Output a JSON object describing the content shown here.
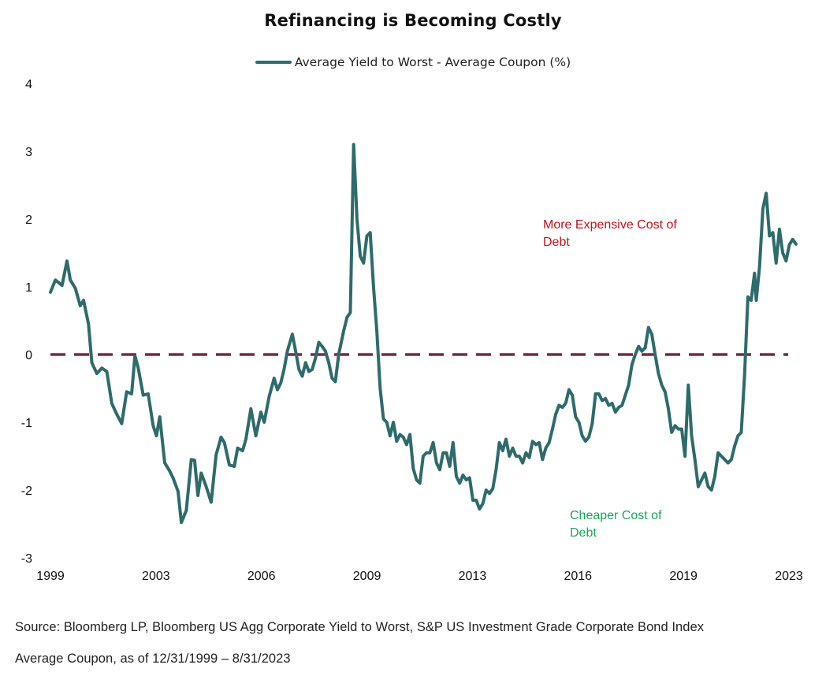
{
  "chart_data": {
    "type": "line",
    "title": "Refinancing is Becoming Costly",
    "xlabel": "",
    "ylabel": "",
    "ylim": [
      -3,
      4
    ],
    "yticks": [
      "4",
      "3",
      "2",
      "1",
      "0",
      "-1",
      "-2",
      "-3"
    ],
    "xticks": [
      "1999",
      "2003",
      "2006",
      "2009",
      "2013",
      "2016",
      "2019",
      "2023"
    ],
    "grid": false,
    "legend_position": "top-center",
    "reference_line": {
      "y": 0,
      "style": "dashed",
      "color": "#7a2848"
    },
    "annotations": [
      {
        "lines": [
          "More Expensive Cost of",
          "Debt"
        ],
        "color": "#c0121f"
      },
      {
        "lines": [
          "Cheaper Cost of",
          "Debt"
        ],
        "color": "#19a85a"
      }
    ],
    "series": [
      {
        "name": "Average Yield to Worst - Average Coupon (%)",
        "color": "#2e6b6b",
        "points": [
          [
            1999.95,
            0.92
          ],
          [
            2000.1,
            1.1
          ],
          [
            2000.3,
            1.02
          ],
          [
            2000.45,
            1.38
          ],
          [
            2000.55,
            1.1
          ],
          [
            2000.7,
            0.98
          ],
          [
            2000.85,
            0.72
          ],
          [
            2000.95,
            0.8
          ],
          [
            2001.1,
            0.45
          ],
          [
            2001.2,
            -0.12
          ],
          [
            2001.35,
            -0.28
          ],
          [
            2001.5,
            -0.2
          ],
          [
            2001.65,
            -0.25
          ],
          [
            2001.8,
            -0.72
          ],
          [
            2001.95,
            -0.88
          ],
          [
            2002.1,
            -1.02
          ],
          [
            2002.25,
            -0.55
          ],
          [
            2002.4,
            -0.58
          ],
          [
            2002.5,
            -0.02
          ],
          [
            2002.6,
            -0.2
          ],
          [
            2002.75,
            -0.6
          ],
          [
            2002.9,
            -0.58
          ],
          [
            2003.05,
            -1.05
          ],
          [
            2003.15,
            -1.2
          ],
          [
            2003.25,
            -0.92
          ],
          [
            2003.4,
            -1.6
          ],
          [
            2003.55,
            -1.72
          ],
          [
            2003.65,
            -1.82
          ],
          [
            2003.8,
            -2.02
          ],
          [
            2003.9,
            -2.48
          ],
          [
            2004.05,
            -2.3
          ],
          [
            2004.2,
            -1.55
          ],
          [
            2004.3,
            -1.56
          ],
          [
            2004.4,
            -2.08
          ],
          [
            2004.5,
            -1.75
          ],
          [
            2004.65,
            -1.95
          ],
          [
            2004.8,
            -2.18
          ],
          [
            2004.95,
            -1.48
          ],
          [
            2005.1,
            -1.22
          ],
          [
            2005.2,
            -1.3
          ],
          [
            2005.35,
            -1.63
          ],
          [
            2005.5,
            -1.65
          ],
          [
            2005.6,
            -1.38
          ],
          [
            2005.75,
            -1.42
          ],
          [
            2005.85,
            -1.25
          ],
          [
            2006.0,
            -0.8
          ],
          [
            2006.15,
            -1.2
          ],
          [
            2006.3,
            -0.85
          ],
          [
            2006.4,
            -1.0
          ],
          [
            2006.55,
            -0.62
          ],
          [
            2006.7,
            -0.35
          ],
          [
            2006.8,
            -0.52
          ],
          [
            2006.9,
            -0.42
          ],
          [
            2007.0,
            -0.22
          ],
          [
            2007.1,
            0.05
          ],
          [
            2007.25,
            0.3
          ],
          [
            2007.35,
            0.05
          ],
          [
            2007.45,
            -0.22
          ],
          [
            2007.55,
            -0.32
          ],
          [
            2007.65,
            -0.12
          ],
          [
            2007.75,
            -0.25
          ],
          [
            2007.85,
            -0.22
          ],
          [
            2007.95,
            -0.05
          ],
          [
            2008.05,
            0.18
          ],
          [
            2008.15,
            0.12
          ],
          [
            2008.25,
            0.05
          ],
          [
            2008.35,
            -0.12
          ],
          [
            2008.45,
            -0.35
          ],
          [
            2008.55,
            -0.4
          ],
          [
            2008.65,
            0.0
          ],
          [
            2008.8,
            0.35
          ],
          [
            2008.9,
            0.55
          ],
          [
            2009.0,
            0.62
          ],
          [
            2009.1,
            3.1
          ],
          [
            2009.2,
            2.0
          ],
          [
            2009.3,
            1.45
          ],
          [
            2009.4,
            1.35
          ],
          [
            2009.5,
            1.75
          ],
          [
            2009.6,
            1.8
          ],
          [
            2009.7,
            1.0
          ],
          [
            2009.8,
            0.35
          ],
          [
            2009.9,
            -0.5
          ],
          [
            2010.0,
            -0.95
          ],
          [
            2010.1,
            -1.0
          ],
          [
            2010.2,
            -1.2
          ],
          [
            2010.3,
            -1.0
          ],
          [
            2010.4,
            -1.28
          ],
          [
            2010.5,
            -1.18
          ],
          [
            2010.6,
            -1.22
          ],
          [
            2010.7,
            -1.33
          ],
          [
            2010.8,
            -1.18
          ],
          [
            2010.9,
            -1.68
          ],
          [
            2011.0,
            -1.85
          ],
          [
            2011.1,
            -1.9
          ],
          [
            2011.2,
            -1.5
          ],
          [
            2011.3,
            -1.45
          ],
          [
            2011.4,
            -1.45
          ],
          [
            2011.5,
            -1.3
          ],
          [
            2011.6,
            -1.6
          ],
          [
            2011.7,
            -1.7
          ],
          [
            2011.8,
            -1.45
          ],
          [
            2011.9,
            -1.45
          ],
          [
            2012.0,
            -1.65
          ],
          [
            2012.1,
            -1.3
          ],
          [
            2012.2,
            -1.8
          ],
          [
            2012.3,
            -1.9
          ],
          [
            2012.4,
            -1.78
          ],
          [
            2012.5,
            -1.85
          ],
          [
            2012.6,
            -1.82
          ],
          [
            2012.7,
            -2.15
          ],
          [
            2012.8,
            -2.15
          ],
          [
            2012.9,
            -2.28
          ],
          [
            2013.0,
            -2.2
          ],
          [
            2013.1,
            -2.0
          ],
          [
            2013.2,
            -2.05
          ],
          [
            2013.3,
            -1.98
          ],
          [
            2013.4,
            -1.7
          ],
          [
            2013.5,
            -1.3
          ],
          [
            2013.6,
            -1.42
          ],
          [
            2013.7,
            -1.25
          ],
          [
            2013.8,
            -1.5
          ],
          [
            2013.9,
            -1.38
          ],
          [
            2014.0,
            -1.5
          ],
          [
            2014.1,
            -1.5
          ],
          [
            2014.2,
            -1.6
          ],
          [
            2014.3,
            -1.45
          ],
          [
            2014.4,
            -1.52
          ],
          [
            2014.5,
            -1.28
          ],
          [
            2014.6,
            -1.33
          ],
          [
            2014.7,
            -1.3
          ],
          [
            2014.8,
            -1.55
          ],
          [
            2014.9,
            -1.38
          ],
          [
            2015.0,
            -1.3
          ],
          [
            2015.1,
            -1.1
          ],
          [
            2015.2,
            -0.88
          ],
          [
            2015.3,
            -0.75
          ],
          [
            2015.4,
            -0.78
          ],
          [
            2015.5,
            -0.72
          ],
          [
            2015.6,
            -0.52
          ],
          [
            2015.7,
            -0.6
          ],
          [
            2015.8,
            -0.92
          ],
          [
            2015.9,
            -1.0
          ],
          [
            2016.0,
            -1.2
          ],
          [
            2016.1,
            -1.28
          ],
          [
            2016.2,
            -1.22
          ],
          [
            2016.3,
            -1.02
          ],
          [
            2016.4,
            -0.58
          ],
          [
            2016.5,
            -0.58
          ],
          [
            2016.6,
            -0.68
          ],
          [
            2016.7,
            -0.65
          ],
          [
            2016.8,
            -0.75
          ],
          [
            2016.9,
            -0.72
          ],
          [
            2017.0,
            -0.85
          ],
          [
            2017.1,
            -0.78
          ],
          [
            2017.2,
            -0.75
          ],
          [
            2017.3,
            -0.6
          ],
          [
            2017.4,
            -0.45
          ],
          [
            2017.5,
            -0.15
          ],
          [
            2017.6,
            0.0
          ],
          [
            2017.7,
            0.12
          ],
          [
            2017.8,
            0.05
          ],
          [
            2017.9,
            0.1
          ],
          [
            2018.0,
            0.4
          ],
          [
            2018.1,
            0.3
          ],
          [
            2018.2,
            0.0
          ],
          [
            2018.3,
            -0.28
          ],
          [
            2018.4,
            -0.45
          ],
          [
            2018.5,
            -0.55
          ],
          [
            2018.6,
            -0.8
          ],
          [
            2018.7,
            -1.15
          ],
          [
            2018.8,
            -1.05
          ],
          [
            2018.9,
            -1.1
          ],
          [
            2019.0,
            -1.1
          ],
          [
            2019.1,
            -1.5
          ],
          [
            2019.2,
            -0.45
          ],
          [
            2019.3,
            -1.2
          ],
          [
            2019.4,
            -1.55
          ],
          [
            2019.5,
            -1.95
          ],
          [
            2019.6,
            -1.85
          ],
          [
            2019.7,
            -1.75
          ],
          [
            2019.8,
            -1.95
          ],
          [
            2019.9,
            -2.0
          ],
          [
            2020.0,
            -1.8
          ],
          [
            2020.1,
            -1.45
          ],
          [
            2020.2,
            -1.5
          ],
          [
            2020.3,
            -1.55
          ],
          [
            2020.4,
            -1.6
          ],
          [
            2020.5,
            -1.55
          ],
          [
            2020.6,
            -1.35
          ],
          [
            2020.7,
            -1.2
          ],
          [
            2020.8,
            -1.15
          ],
          [
            2020.9,
            -0.3
          ],
          [
            2021.0,
            0.85
          ],
          [
            2021.1,
            0.8
          ],
          [
            2021.2,
            1.2
          ],
          [
            2021.25,
            0.8
          ],
          [
            2021.35,
            1.3
          ],
          [
            2021.45,
            2.15
          ],
          [
            2021.55,
            2.38
          ],
          [
            2021.65,
            1.75
          ],
          [
            2021.75,
            1.8
          ],
          [
            2021.85,
            1.35
          ],
          [
            2021.95,
            1.85
          ],
          [
            2022.05,
            1.5
          ],
          [
            2022.15,
            1.38
          ],
          [
            2022.25,
            1.62
          ],
          [
            2022.35,
            1.7
          ],
          [
            2022.45,
            1.63
          ]
        ]
      }
    ]
  },
  "footnote": {
    "line1": "Source: Bloomberg LP, Bloomberg US Agg Corporate Yield to Worst, S&P US Investment Grade Corporate Bond Index",
    "line2": "Average Coupon, as of 12/31/1999 – 8/31/2023"
  }
}
